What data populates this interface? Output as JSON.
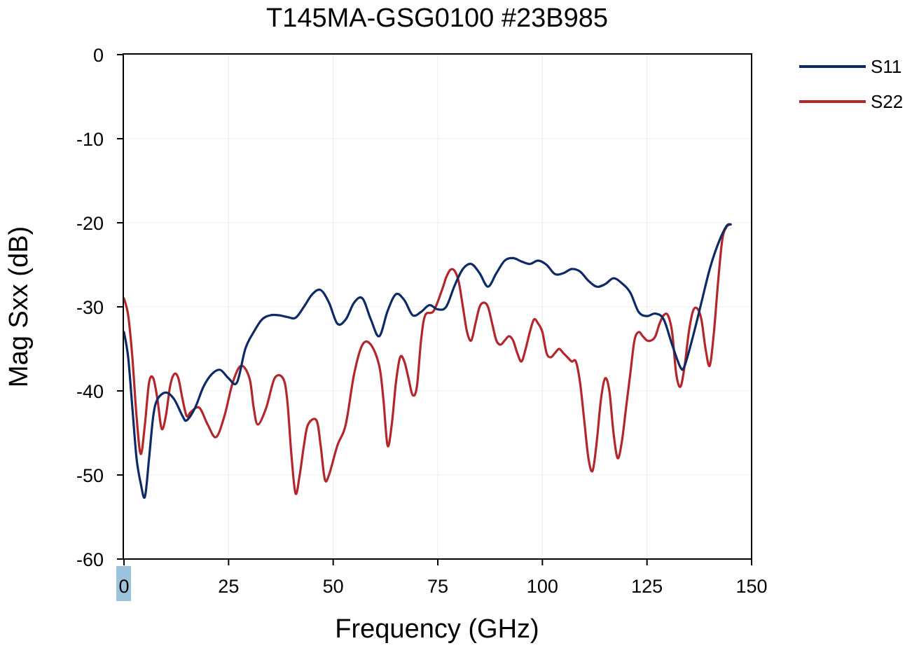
{
  "chart_data": {
    "type": "line",
    "title": "T145MA-GSG0100 #23B985",
    "xlabel": "Frequency (GHz)",
    "ylabel": "Mag Sxx (dB)",
    "xlim": [
      0,
      150
    ],
    "ylim": [
      -60,
      0
    ],
    "xticks": [
      0,
      25,
      50,
      75,
      100,
      125,
      150
    ],
    "yticks": [
      0,
      -10,
      -20,
      -30,
      -40,
      -50,
      -60
    ],
    "grid": true,
    "legend_position": "top-right outside",
    "highlighted_tick": "0",
    "colors": {
      "S11": "#0d2a66",
      "S22": "#b5262b",
      "highlight": "#9cc3dc",
      "grid": "#ececec",
      "axis": "#000000"
    },
    "series": [
      {
        "name": "S11",
        "x": [
          0,
          1,
          2,
          3,
          4,
          5,
          6,
          7,
          8,
          10,
          12,
          14,
          15,
          17,
          19,
          21,
          23,
          25,
          27,
          29,
          31,
          33,
          35,
          37,
          39,
          41,
          43,
          45,
          47,
          49,
          51,
          53,
          55,
          57,
          59,
          61,
          63,
          65,
          67,
          69,
          71,
          73,
          75,
          77,
          79,
          81,
          83,
          85,
          87,
          89,
          91,
          93,
          95,
          97,
          99,
          101,
          103,
          105,
          107,
          109,
          111,
          113,
          115,
          117,
          119,
          121,
          123,
          125,
          127,
          129,
          131,
          133,
          134,
          136,
          138,
          140,
          142,
          144,
          145
        ],
        "y": [
          -33,
          -36,
          -42,
          -48,
          -51,
          -52.6,
          -48,
          -43,
          -41,
          -40.2,
          -41,
          -43,
          -43.5,
          -42,
          -39.5,
          -38,
          -37.5,
          -38.5,
          -39,
          -35,
          -33,
          -31.5,
          -31,
          -31,
          -31.2,
          -31.3,
          -30,
          -28.5,
          -28,
          -29.5,
          -32,
          -31.5,
          -29.5,
          -29,
          -31.5,
          -33.5,
          -30.5,
          -28.5,
          -29.2,
          -31,
          -30.6,
          -29.8,
          -30.3,
          -30,
          -27.5,
          -25.5,
          -24.9,
          -26,
          -27.6,
          -26,
          -24.5,
          -24.2,
          -24.6,
          -24.9,
          -24.5,
          -25,
          -26.1,
          -26,
          -25.5,
          -25.8,
          -26.9,
          -27.6,
          -27.3,
          -26.6,
          -27.2,
          -28.3,
          -30.6,
          -31.1,
          -30.8,
          -31.5,
          -34.5,
          -37.2,
          -37,
          -33.5,
          -29.5,
          -25.5,
          -22.5,
          -20.4,
          -20.2
        ]
      },
      {
        "name": "S22",
        "x": [
          0,
          1,
          2,
          3,
          4,
          5,
          6,
          7,
          8,
          9,
          10,
          11,
          12,
          13,
          14,
          15,
          16,
          18,
          20,
          22,
          24,
          26,
          28,
          30,
          31,
          32,
          34,
          36,
          38,
          39,
          40,
          41,
          42,
          43,
          44,
          46,
          47,
          48,
          49,
          51,
          53,
          55,
          57,
          59,
          61,
          62,
          63,
          64,
          65,
          66,
          67,
          68,
          69,
          70,
          71,
          72,
          74,
          76,
          77,
          78,
          79,
          80,
          81,
          82,
          83,
          84,
          85,
          86,
          87,
          88,
          89,
          90,
          91,
          92,
          93,
          94,
          95,
          96,
          97,
          98,
          99,
          100,
          101,
          102,
          103,
          104,
          105,
          106,
          107,
          108,
          109,
          110,
          111,
          112,
          113,
          114,
          115,
          116,
          117,
          118,
          119,
          120,
          121,
          122,
          123,
          124,
          125,
          126,
          127,
          128,
          129,
          130,
          131,
          132,
          133,
          134,
          135,
          136,
          137,
          138,
          139,
          140,
          141,
          142,
          143,
          144,
          145
        ],
        "y": [
          -29,
          -31,
          -36,
          -43,
          -47.5,
          -44,
          -39,
          -38.5,
          -41,
          -44.5,
          -43,
          -39.5,
          -38,
          -38.5,
          -41,
          -43,
          -42.5,
          -42,
          -44,
          -45.5,
          -43,
          -39,
          -37,
          -38.5,
          -42,
          -44,
          -42,
          -38.5,
          -38.5,
          -41,
          -47.5,
          -52.2,
          -50,
          -46.5,
          -44,
          -43.5,
          -46.5,
          -50.5,
          -50,
          -46.5,
          -44,
          -38,
          -34.5,
          -34.5,
          -37,
          -41,
          -46.5,
          -44,
          -39,
          -36,
          -36.5,
          -38.5,
          -40.5,
          -39.5,
          -34,
          -31,
          -30.5,
          -28,
          -26.5,
          -25.6,
          -25.7,
          -27,
          -30,
          -33,
          -34,
          -32,
          -30,
          -29.5,
          -30,
          -32,
          -34,
          -34.5,
          -34,
          -33.5,
          -34,
          -35.5,
          -36.5,
          -35,
          -33,
          -31.5,
          -32,
          -33,
          -35.5,
          -36,
          -35.5,
          -35,
          -35.5,
          -36,
          -36.5,
          -36.5,
          -39,
          -43.5,
          -48,
          -49.5,
          -46,
          -41,
          -38.5,
          -40,
          -45,
          -48,
          -46,
          -42,
          -38,
          -34,
          -33,
          -33.5,
          -34,
          -34,
          -33.5,
          -32,
          -31,
          -31,
          -33,
          -38,
          -39.5,
          -37,
          -33,
          -30.5,
          -30.2,
          -31.5,
          -35,
          -37,
          -33,
          -27,
          -22,
          -20.5,
          -20.2
        ]
      }
    ]
  }
}
